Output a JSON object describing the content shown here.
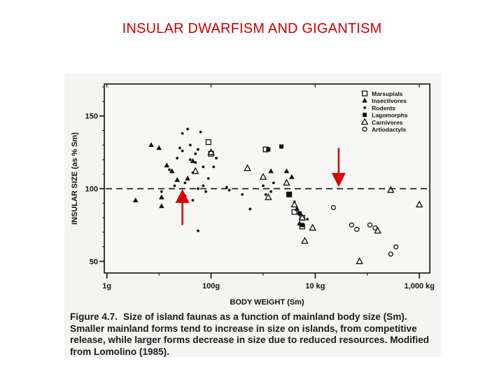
{
  "slide": {
    "title": "INSULAR DWARFISM AND GIGANTISM"
  },
  "caption": {
    "figure_number": "Figure 4.7.",
    "text": "Size of island faunas as a function of mainland body size (Sm). Smaller mainland forms tend to increase in size on islands, from competitive release, while larger forms decrease in size due to reduced resources. Modified from Lomolino (1985)."
  },
  "colors": {
    "title": "#cc0000",
    "arrow": "#dd0000",
    "ink": "#111111"
  },
  "chart_data": {
    "type": "scatter",
    "title": "",
    "xlabel": "BODY WEIGHT (Sm)",
    "ylabel": "INSULAR SIZE (as % Sm)",
    "x_scale": "log10 grams",
    "xlim": [
      -0.05,
      6.2
    ],
    "ylim": [
      42,
      172
    ],
    "x_ticks": [
      {
        "value": 0,
        "label": "1g"
      },
      {
        "value": 2,
        "label": "100g"
      },
      {
        "value": 4,
        "label": "10 kg"
      },
      {
        "value": 6,
        "label": "1,000 kg"
      }
    ],
    "y_ticks": [
      {
        "value": 50,
        "label": "50"
      },
      {
        "value": 100,
        "label": "100"
      },
      {
        "value": 150,
        "label": "150"
      }
    ],
    "reference_line": {
      "y": 100,
      "style": "dashed"
    },
    "legend_position": "top-right",
    "annotations": [
      {
        "type": "arrow",
        "direction": "up",
        "x": 1.45,
        "y_from": 75,
        "y_to": 95
      },
      {
        "type": "arrow",
        "direction": "down",
        "x": 4.45,
        "y_from": 128,
        "y_to": 106
      }
    ],
    "series": [
      {
        "name": "Marsupials",
        "marker": "open-square",
        "points": [
          [
            1.95,
            132
          ],
          [
            2.0,
            124
          ],
          [
            3.05,
            127
          ],
          [
            3.5,
            96
          ],
          [
            3.6,
            84
          ],
          [
            3.75,
            80
          ],
          [
            3.75,
            74
          ]
        ]
      },
      {
        "name": "Insectivores",
        "marker": "filled-triangle",
        "points": [
          [
            0.55,
            92
          ],
          [
            0.85,
            130
          ],
          [
            1.0,
            128
          ],
          [
            1.05,
            94
          ],
          [
            1.05,
            88
          ],
          [
            1.15,
            116
          ],
          [
            1.25,
            112
          ],
          [
            1.35,
            106
          ],
          [
            1.55,
            107
          ],
          [
            1.65,
            119
          ],
          [
            3.15,
            112
          ],
          [
            3.45,
            112
          ],
          [
            3.55,
            108
          ],
          [
            3.65,
            86
          ],
          [
            3.7,
            76
          ]
        ]
      },
      {
        "name": "Rodents",
        "marker": "filled-dot",
        "points": [
          [
            1.05,
            98
          ],
          [
            1.3,
            102
          ],
          [
            1.35,
            121
          ],
          [
            1.4,
            128
          ],
          [
            1.45,
            138
          ],
          [
            1.45,
            126
          ],
          [
            1.5,
            104
          ],
          [
            1.5,
            95
          ],
          [
            1.55,
            141
          ],
          [
            1.6,
            130
          ],
          [
            1.6,
            120
          ],
          [
            1.65,
            111
          ],
          [
            1.65,
            92
          ],
          [
            1.7,
            124
          ],
          [
            1.7,
            118
          ],
          [
            1.75,
            127
          ],
          [
            1.75,
            100
          ],
          [
            1.8,
            139
          ],
          [
            1.85,
            115
          ],
          [
            1.85,
            102
          ],
          [
            1.9,
            98
          ],
          [
            1.95,
            107
          ],
          [
            2.05,
            115
          ],
          [
            2.1,
            121
          ],
          [
            2.3,
            101
          ],
          [
            2.35,
            99
          ],
          [
            2.6,
            96
          ],
          [
            2.75,
            86
          ],
          [
            3.0,
            102
          ],
          [
            3.05,
            96
          ],
          [
            3.15,
            98
          ],
          [
            3.2,
            104
          ],
          [
            3.6,
            91
          ],
          [
            3.85,
            79
          ],
          [
            1.2,
            113
          ],
          [
            1.75,
            71
          ]
        ]
      },
      {
        "name": "Lagomorphs",
        "marker": "filled-square",
        "points": [
          [
            3.1,
            127
          ],
          [
            3.35,
            129
          ],
          [
            3.5,
            96
          ],
          [
            3.7,
            83
          ],
          [
            3.75,
            75
          ]
        ]
      },
      {
        "name": "Carnivores",
        "marker": "open-triangle",
        "points": [
          [
            1.7,
            112
          ],
          [
            2.0,
            125
          ],
          [
            2.7,
            114
          ],
          [
            3.0,
            108
          ],
          [
            3.1,
            94
          ],
          [
            3.45,
            104
          ],
          [
            3.6,
            89
          ],
          [
            3.75,
            80
          ],
          [
            3.8,
            64
          ],
          [
            3.95,
            73
          ],
          [
            4.85,
            50
          ],
          [
            5.2,
            71
          ],
          [
            5.45,
            99
          ],
          [
            6.0,
            89
          ]
        ]
      },
      {
        "name": "Artiodactyls",
        "marker": "open-circle",
        "points": [
          [
            4.35,
            87
          ],
          [
            4.7,
            75
          ],
          [
            4.8,
            72
          ],
          [
            5.05,
            75
          ],
          [
            5.15,
            73
          ],
          [
            5.45,
            55
          ],
          [
            5.55,
            60
          ]
        ]
      }
    ]
  }
}
